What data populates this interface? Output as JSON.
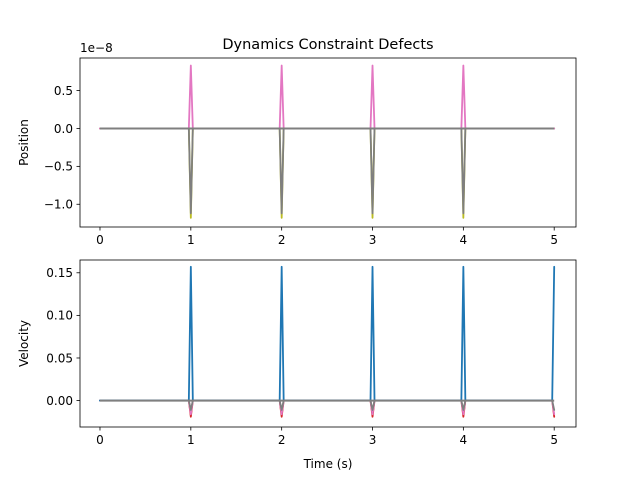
{
  "figure": {
    "title": "Dynamics Constraint Defects"
  },
  "chart_data": [
    {
      "type": "line",
      "title": "Dynamics Constraint Defects",
      "xlabel": "",
      "ylabel": "Position",
      "offset_text": "1e−8",
      "xlim": [
        -0.22,
        5.24
      ],
      "ylim": [
        -1.3,
        0.93
      ],
      "x_ticks": [
        0,
        1,
        2,
        3,
        4,
        5
      ],
      "x_tick_labels": [
        "0",
        "1",
        "2",
        "3",
        "4",
        "5"
      ],
      "y_ticks": [
        0.5,
        0.0,
        -0.5,
        -1.0
      ],
      "y_tick_labels": [
        "0.5",
        "0.0",
        "−0.5",
        "−1.0"
      ],
      "grid": false,
      "legend": "none",
      "baseline": {
        "x": [
          0,
          5
        ],
        "y": 0
      },
      "spike_times": [
        1,
        2,
        3,
        4
      ],
      "series": [
        {
          "color": "#bcbd22",
          "spike_values": [
            -1.18,
            -1.18,
            -1.18,
            -1.18
          ]
        },
        {
          "color": "#7f7f7f",
          "spike_values": [
            -1.12,
            -1.12,
            -1.12,
            -1.12
          ]
        },
        {
          "color": "#e377c2",
          "spike_values": [
            0.83,
            0.83,
            0.83,
            0.83
          ]
        }
      ]
    },
    {
      "type": "line",
      "title": "",
      "xlabel": "Time (s)",
      "ylabel": "Velocity",
      "xlim": [
        -0.22,
        5.24
      ],
      "ylim": [
        -0.031,
        0.165
      ],
      "x_ticks": [
        0,
        1,
        2,
        3,
        4,
        5
      ],
      "x_tick_labels": [
        "0",
        "1",
        "2",
        "3",
        "4",
        "5"
      ],
      "y_ticks": [
        0.15,
        0.1,
        0.05,
        0.0
      ],
      "y_tick_labels": [
        "0.15",
        "0.10",
        "0.05",
        "0.00"
      ],
      "grid": false,
      "legend": "none",
      "baseline": {
        "x": [
          0,
          5
        ],
        "y": 0
      },
      "spike_times": [
        1,
        2,
        3,
        4,
        5
      ],
      "series": [
        {
          "color": "#d62728",
          "spike_values": [
            -0.019,
            -0.019,
            -0.019,
            -0.019,
            -0.019
          ]
        },
        {
          "color": "#e377c2",
          "spike_values": [
            -0.016,
            -0.016,
            -0.016,
            -0.016,
            -0.016
          ]
        },
        {
          "color": "#7f7f7f",
          "spike_values": [
            -0.011,
            -0.011,
            -0.011,
            -0.011,
            -0.011
          ]
        },
        {
          "color": "#1f77b4",
          "spike_values": [
            0.157,
            0.157,
            0.157,
            0.157,
            0.157
          ]
        }
      ]
    }
  ]
}
